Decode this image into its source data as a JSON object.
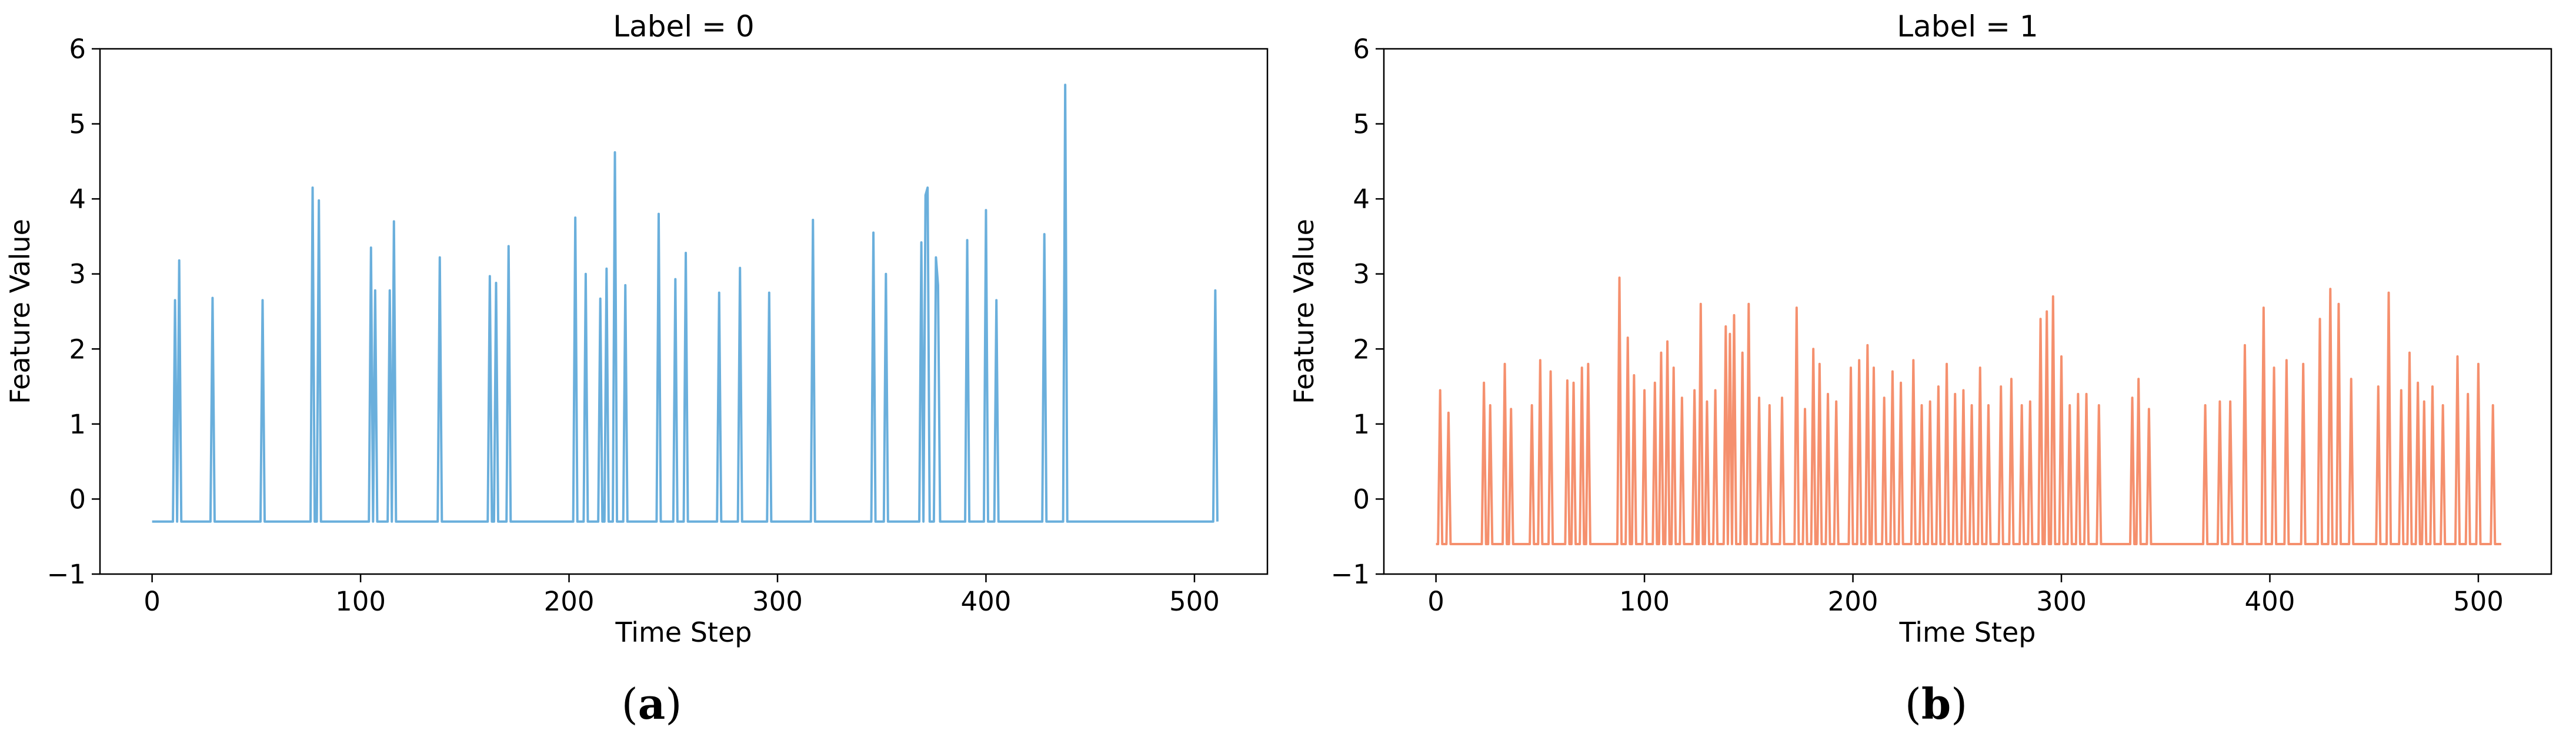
{
  "chart_data": [
    {
      "type": "line",
      "title": "Label = 0",
      "xlabel": "Time Step",
      "ylabel": "Feature Value",
      "xlim": [
        -25,
        535
      ],
      "ylim": [
        -1,
        6
      ],
      "xticks": [
        0,
        100,
        200,
        300,
        400,
        500
      ],
      "yticks": [
        -1,
        0,
        1,
        2,
        3,
        4,
        5,
        6
      ],
      "xtick_labels": [
        "0",
        "100",
        "200",
        "300",
        "400",
        "500"
      ],
      "ytick_labels": [
        "−1",
        "0",
        "1",
        "2",
        "3",
        "4",
        "5",
        "6"
      ],
      "grid": false,
      "color": "#6aafdc",
      "caption": "(a)",
      "caption_letter": "a",
      "n_points": 512,
      "baseline": -0.3,
      "spikes": [
        [
          11,
          2.65
        ],
        [
          13,
          3.18
        ],
        [
          29,
          2.68
        ],
        [
          53,
          2.65
        ],
        [
          77,
          4.15
        ],
        [
          80,
          3.98
        ],
        [
          105,
          3.35
        ],
        [
          107,
          2.78
        ],
        [
          114,
          2.78
        ],
        [
          116,
          3.7
        ],
        [
          138,
          3.22
        ],
        [
          162,
          2.97
        ],
        [
          165,
          2.88
        ],
        [
          171,
          3.37
        ],
        [
          203,
          3.75
        ],
        [
          208,
          3.0
        ],
        [
          215,
          2.67
        ],
        [
          218,
          3.07
        ],
        [
          222,
          4.62
        ],
        [
          227,
          2.85
        ],
        [
          243,
          3.8
        ],
        [
          251,
          2.93
        ],
        [
          256,
          3.28
        ],
        [
          272,
          2.75
        ],
        [
          282,
          3.08
        ],
        [
          296,
          2.75
        ],
        [
          317,
          3.72
        ],
        [
          346,
          3.55
        ],
        [
          352,
          3.0
        ],
        [
          369,
          3.42
        ],
        [
          371,
          4.05
        ],
        [
          372,
          4.15
        ],
        [
          376,
          3.22
        ],
        [
          377,
          2.85
        ],
        [
          391,
          3.45
        ],
        [
          400,
          3.85
        ],
        [
          405,
          2.65
        ],
        [
          428,
          3.53
        ],
        [
          438,
          5.52
        ],
        [
          510,
          2.78
        ]
      ]
    },
    {
      "type": "line",
      "title": "Label = 1",
      "xlabel": "Time Step",
      "ylabel": "Feature Value",
      "xlim": [
        -25,
        535
      ],
      "ylim": [
        -1,
        6
      ],
      "xticks": [
        0,
        100,
        200,
        300,
        400,
        500
      ],
      "yticks": [
        -1,
        0,
        1,
        2,
        3,
        4,
        5,
        6
      ],
      "xtick_labels": [
        "0",
        "100",
        "200",
        "300",
        "400",
        "500"
      ],
      "ytick_labels": [
        "−1",
        "0",
        "1",
        "2",
        "3",
        "4",
        "5",
        "6"
      ],
      "grid": false,
      "color": "#f5906e",
      "caption": "(b)",
      "caption_letter": "b",
      "n_points": 512,
      "baseline": -0.6,
      "spikes": [
        [
          2,
          1.45
        ],
        [
          6,
          1.15
        ],
        [
          23,
          1.55
        ],
        [
          26,
          1.25
        ],
        [
          33,
          1.8
        ],
        [
          36,
          1.2
        ],
        [
          46,
          1.25
        ],
        [
          50,
          1.85
        ],
        [
          55,
          1.7
        ],
        [
          63,
          1.58
        ],
        [
          66,
          1.55
        ],
        [
          70,
          1.75
        ],
        [
          73,
          1.8
        ],
        [
          88,
          2.95
        ],
        [
          92,
          2.15
        ],
        [
          95,
          1.65
        ],
        [
          100,
          1.45
        ],
        [
          105,
          1.55
        ],
        [
          108,
          1.95
        ],
        [
          111,
          2.1
        ],
        [
          114,
          1.75
        ],
        [
          118,
          1.35
        ],
        [
          124,
          1.45
        ],
        [
          127,
          2.6
        ],
        [
          130,
          1.3
        ],
        [
          134,
          1.45
        ],
        [
          139,
          2.3
        ],
        [
          141,
          2.2
        ],
        [
          143,
          2.45
        ],
        [
          147,
          1.95
        ],
        [
          150,
          2.6
        ],
        [
          155,
          1.35
        ],
        [
          160,
          1.25
        ],
        [
          166,
          1.35
        ],
        [
          173,
          2.55
        ],
        [
          177,
          1.2
        ],
        [
          181,
          2.0
        ],
        [
          184,
          1.8
        ],
        [
          188,
          1.4
        ],
        [
          192,
          1.3
        ],
        [
          199,
          1.75
        ],
        [
          203,
          1.85
        ],
        [
          207,
          2.05
        ],
        [
          210,
          1.75
        ],
        [
          215,
          1.35
        ],
        [
          219,
          1.7
        ],
        [
          223,
          1.55
        ],
        [
          229,
          1.85
        ],
        [
          233,
          1.25
        ],
        [
          237,
          1.3
        ],
        [
          241,
          1.5
        ],
        [
          245,
          1.8
        ],
        [
          249,
          1.4
        ],
        [
          253,
          1.45
        ],
        [
          257,
          1.25
        ],
        [
          261,
          1.75
        ],
        [
          265,
          1.25
        ],
        [
          271,
          1.5
        ],
        [
          276,
          1.6
        ],
        [
          281,
          1.25
        ],
        [
          285,
          1.3
        ],
        [
          290,
          2.4
        ],
        [
          293,
          2.5
        ],
        [
          296,
          2.7
        ],
        [
          300,
          1.9
        ],
        [
          304,
          1.25
        ],
        [
          308,
          1.4
        ],
        [
          312,
          1.4
        ],
        [
          318,
          1.25
        ],
        [
          334,
          1.35
        ],
        [
          337,
          1.6
        ],
        [
          342,
          1.2
        ],
        [
          369,
          1.25
        ],
        [
          376,
          1.3
        ],
        [
          381,
          1.3
        ],
        [
          388,
          2.05
        ],
        [
          397,
          2.55
        ],
        [
          402,
          1.75
        ],
        [
          408,
          1.85
        ],
        [
          416,
          1.8
        ],
        [
          424,
          2.4
        ],
        [
          429,
          2.8
        ],
        [
          433,
          2.6
        ],
        [
          439,
          1.6
        ],
        [
          452,
          1.5
        ],
        [
          457,
          2.75
        ],
        [
          463,
          1.45
        ],
        [
          467,
          1.95
        ],
        [
          471,
          1.55
        ],
        [
          474,
          1.3
        ],
        [
          478,
          1.5
        ],
        [
          483,
          1.25
        ],
        [
          490,
          1.9
        ],
        [
          495,
          1.4
        ],
        [
          500,
          1.8
        ],
        [
          507,
          1.25
        ]
      ]
    }
  ]
}
